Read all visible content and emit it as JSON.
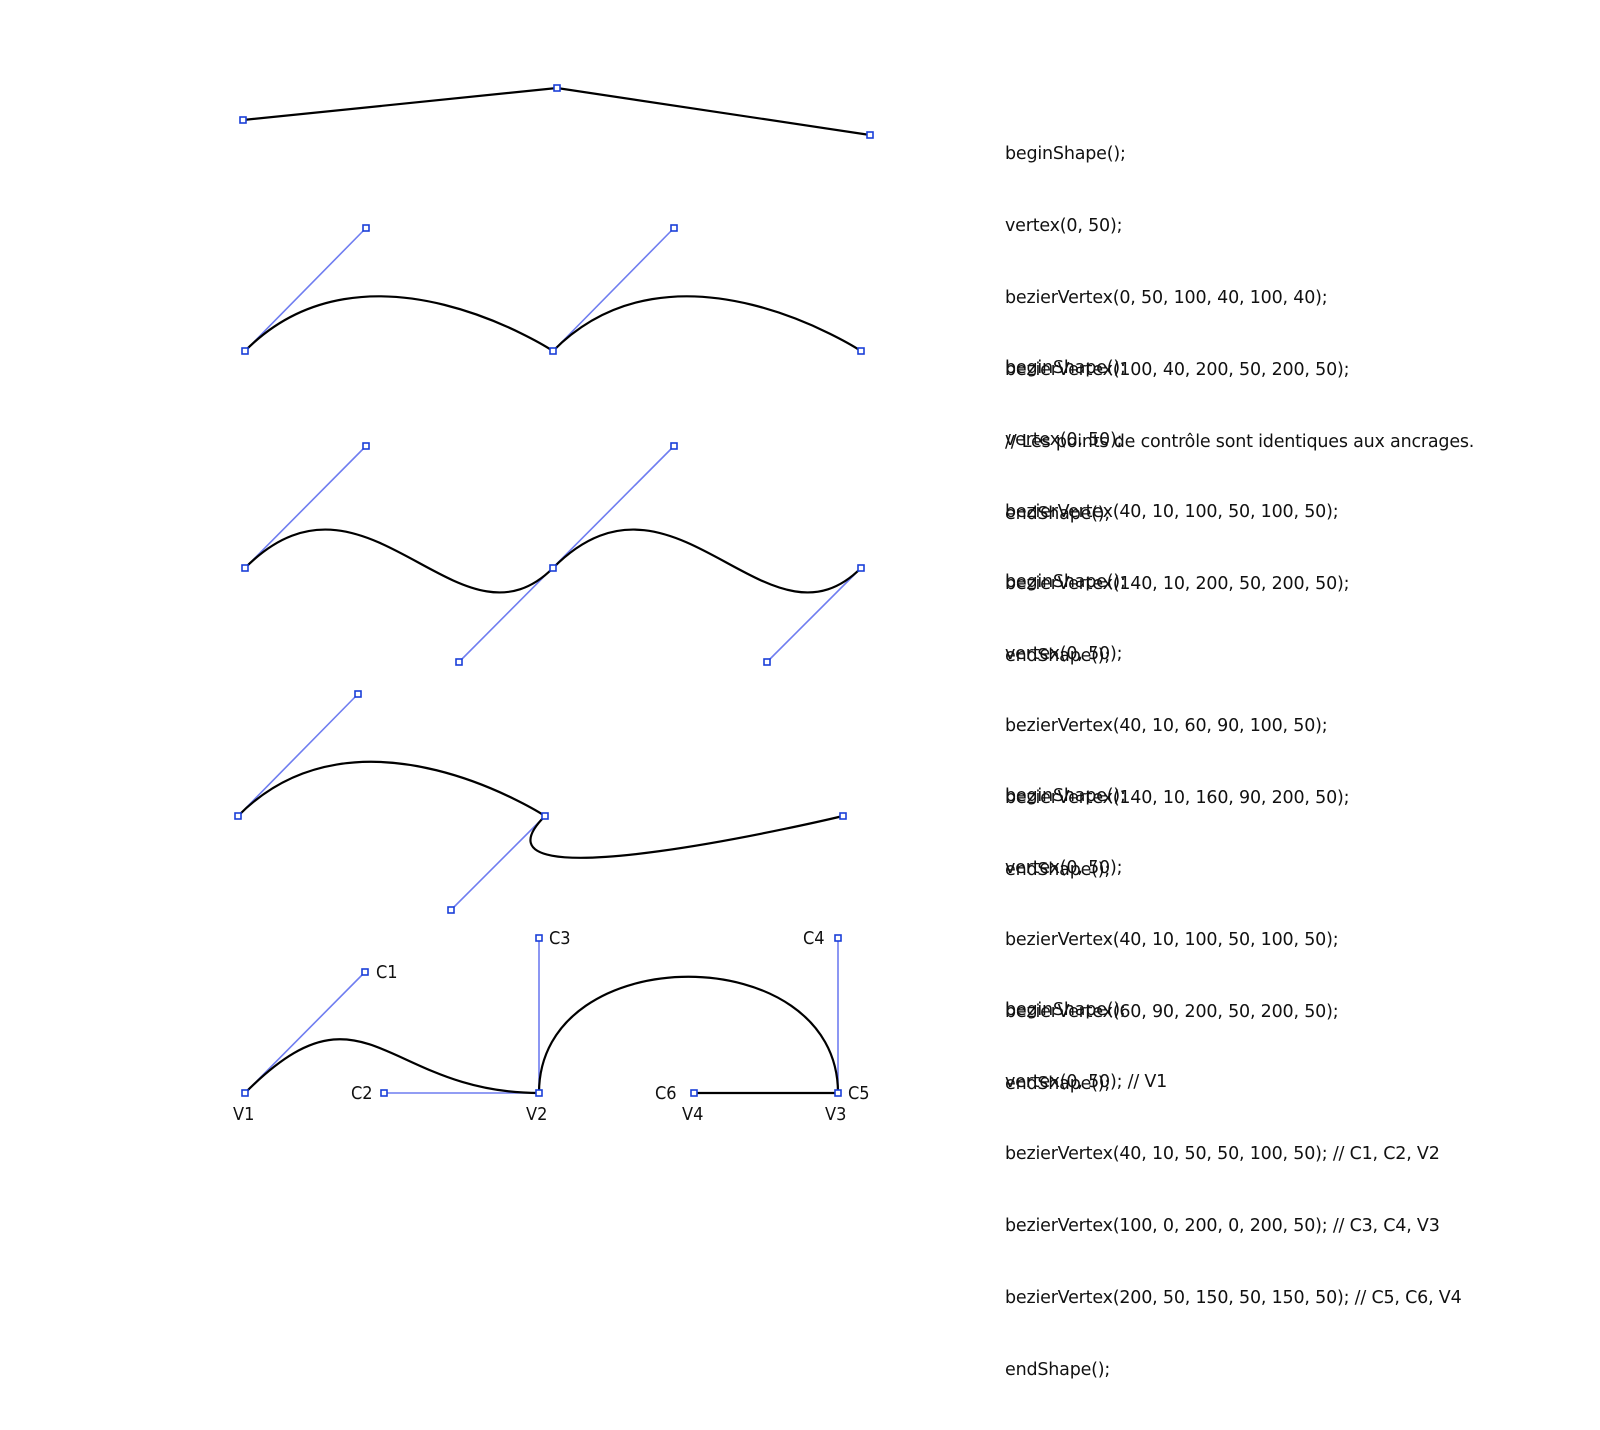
{
  "code_blocks": [
    {
      "lines": [
        "beginShape();",
        "vertex(0, 50);",
        "bezierVertex(0, 50, 100, 40, 100, 40);",
        "bezierVertex(100, 40, 200, 50, 200, 50);",
        "// Les points de contrôle sont identiques aux ancrages.",
        "endShape();"
      ]
    },
    {
      "lines": [
        "beginShape();",
        "vertex(0, 50);",
        "bezierVertex(40, 10, 100, 50, 100, 50);",
        "bezierVertex(140, 10, 200, 50, 200, 50);",
        "endShape();"
      ]
    },
    {
      "lines": [
        "beginShape();",
        "vertex(0, 50);",
        "bezierVertex(40, 10, 60, 90, 100, 50);",
        "bezierVertex(140, 10, 160, 90, 200, 50);",
        "endShape();"
      ]
    },
    {
      "lines": [
        "beginShape();",
        "vertex(0, 50);",
        "bezierVertex(40, 10, 100, 50, 100, 50);",
        "bezierVertex(60, 90, 200, 50, 200, 50);",
        "endShape();"
      ]
    },
    {
      "lines": [
        "beginShape();",
        "vertex(0, 50); // V1",
        "bezierVertex(40, 10, 50, 50, 100, 50); // C1, C2, V2",
        "bezierVertex(100, 0, 200, 0, 200, 50); // C3, C4, V3",
        "bezierVertex(200, 50, 150, 50, 150, 50); // C5, C6, V4",
        "endShape();"
      ]
    }
  ],
  "point_labels": {
    "v1": "V1",
    "v2": "V2",
    "v3": "V3",
    "v4": "V4",
    "c1": "C1",
    "c2": "C2",
    "c3": "C3",
    "c4": "C4",
    "c5": "C5",
    "c6": "C6"
  },
  "colors": {
    "curve": "#000000",
    "handle_line": "#6f7df0",
    "point_marker": "#1a3fd8"
  }
}
